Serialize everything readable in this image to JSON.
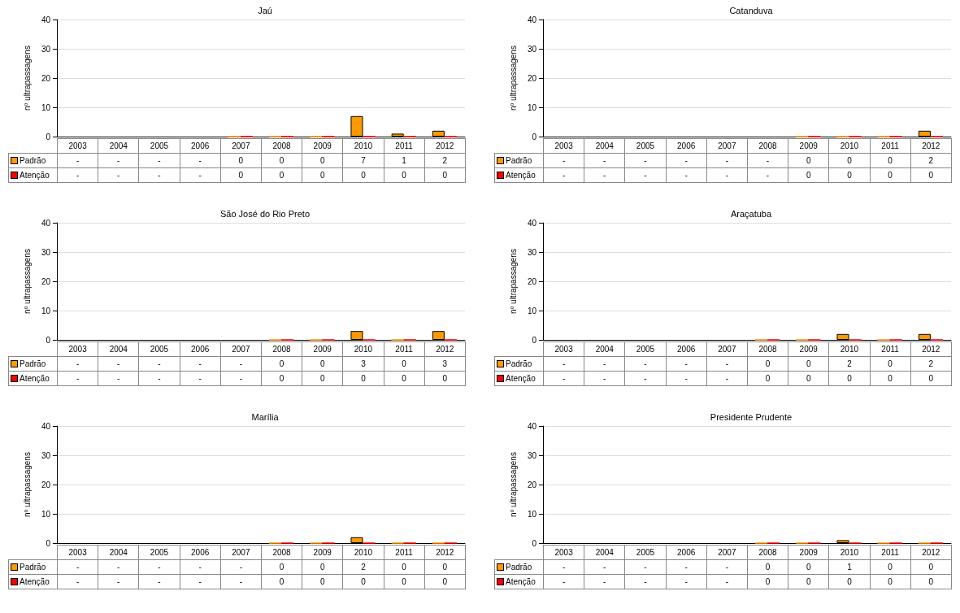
{
  "chart_data": [
    {
      "type": "bar",
      "title": "Jaú",
      "ylabel": "nº ultrapassagens",
      "categories": [
        "2003",
        "2004",
        "2005",
        "2006",
        "2007",
        "2008",
        "2009",
        "2010",
        "2011",
        "2012"
      ],
      "ylim": [
        0,
        40
      ],
      "yticks": [
        0,
        10,
        20,
        30,
        40
      ],
      "grid": "y",
      "legend": "bottom left",
      "data_labels": true,
      "series": [
        {
          "name": "Padrão",
          "color": "#ff9900",
          "values": [
            null,
            null,
            null,
            null,
            0,
            0,
            0,
            7,
            1,
            2
          ],
          "value_labels": [
            "-",
            "-",
            "-",
            "-",
            "0",
            "0",
            "0",
            "7",
            "1",
            "2"
          ]
        },
        {
          "name": "Atenção",
          "color": "#ff0000",
          "values": [
            null,
            null,
            null,
            null,
            0,
            0,
            0,
            0,
            0,
            0
          ],
          "value_labels": [
            "-",
            "-",
            "-",
            "-",
            "0",
            "0",
            "0",
            "0",
            "0",
            "0"
          ]
        }
      ]
    },
    {
      "type": "bar",
      "title": "Catanduva",
      "ylabel": "nº ultrapassagens",
      "categories": [
        "2003",
        "2004",
        "2005",
        "2006",
        "2007",
        "2008",
        "2009",
        "2010",
        "2011",
        "2012"
      ],
      "ylim": [
        0,
        40
      ],
      "yticks": [
        0,
        10,
        20,
        30,
        40
      ],
      "grid": "y",
      "legend": "bottom left",
      "data_labels": true,
      "series": [
        {
          "name": "Padrão",
          "color": "#ff9900",
          "values": [
            null,
            null,
            null,
            null,
            null,
            null,
            0,
            0,
            0,
            2
          ],
          "value_labels": [
            "-",
            "-",
            "-",
            "-",
            "-",
            "-",
            "0",
            "0",
            "0",
            "2"
          ]
        },
        {
          "name": "Atenção",
          "color": "#ff0000",
          "values": [
            null,
            null,
            null,
            null,
            null,
            null,
            0,
            0,
            0,
            0
          ],
          "value_labels": [
            "-",
            "-",
            "-",
            "-",
            "-",
            "-",
            "0",
            "0",
            "0",
            "0"
          ]
        }
      ]
    },
    {
      "type": "bar",
      "title": "São José do Rio Preto",
      "ylabel": "nº ultrapassagens",
      "categories": [
        "2003",
        "2004",
        "2005",
        "2006",
        "2007",
        "2008",
        "2009",
        "2010",
        "2011",
        "2012"
      ],
      "ylim": [
        0,
        40
      ],
      "yticks": [
        0,
        10,
        20,
        30,
        40
      ],
      "grid": "y",
      "legend": "bottom left",
      "data_labels": true,
      "series": [
        {
          "name": "Padrão",
          "color": "#ff9900",
          "values": [
            null,
            null,
            null,
            null,
            null,
            0,
            0,
            3,
            0,
            3
          ],
          "value_labels": [
            "-",
            "-",
            "-",
            "-",
            "-",
            "0",
            "0",
            "3",
            "0",
            "3"
          ]
        },
        {
          "name": "Atenção",
          "color": "#ff0000",
          "values": [
            null,
            null,
            null,
            null,
            null,
            0,
            0,
            0,
            0,
            0
          ],
          "value_labels": [
            "-",
            "-",
            "-",
            "-",
            "-",
            "0",
            "0",
            "0",
            "0",
            "0"
          ]
        }
      ]
    },
    {
      "type": "bar",
      "title": "Araçatuba",
      "ylabel": "nº ultrapassagens",
      "categories": [
        "2003",
        "2004",
        "2005",
        "2006",
        "2007",
        "2008",
        "2009",
        "2010",
        "2011",
        "2012"
      ],
      "ylim": [
        0,
        40
      ],
      "yticks": [
        0,
        10,
        20,
        30,
        40
      ],
      "grid": "y",
      "legend": "bottom left",
      "data_labels": true,
      "series": [
        {
          "name": "Padrão",
          "color": "#ff9900",
          "values": [
            null,
            null,
            null,
            null,
            null,
            0,
            0,
            2,
            0,
            2
          ],
          "value_labels": [
            "-",
            "-",
            "-",
            "-",
            "-",
            "0",
            "0",
            "2",
            "0",
            "2"
          ]
        },
        {
          "name": "Atenção",
          "color": "#ff0000",
          "values": [
            null,
            null,
            null,
            null,
            null,
            0,
            0,
            0,
            0,
            0
          ],
          "value_labels": [
            "-",
            "-",
            "-",
            "-",
            "-",
            "0",
            "0",
            "0",
            "0",
            "0"
          ]
        }
      ]
    },
    {
      "type": "bar",
      "title": "Marília",
      "ylabel": "nº ultrapassagens",
      "categories": [
        "2003",
        "2004",
        "2005",
        "2006",
        "2007",
        "2008",
        "2009",
        "2010",
        "2011",
        "2012"
      ],
      "ylim": [
        0,
        40
      ],
      "yticks": [
        0,
        10,
        20,
        30,
        40
      ],
      "grid": "y",
      "legend": "bottom left",
      "data_labels": true,
      "series": [
        {
          "name": "Padrão",
          "color": "#ff9900",
          "values": [
            null,
            null,
            null,
            null,
            null,
            0,
            0,
            2,
            0,
            0
          ],
          "value_labels": [
            "-",
            "-",
            "-",
            "-",
            "-",
            "0",
            "0",
            "2",
            "0",
            "0"
          ]
        },
        {
          "name": "Atenção",
          "color": "#ff0000",
          "values": [
            null,
            null,
            null,
            null,
            null,
            0,
            0,
            0,
            0,
            0
          ],
          "value_labels": [
            "-",
            "-",
            "-",
            "-",
            "-",
            "0",
            "0",
            "0",
            "0",
            "0"
          ]
        }
      ]
    },
    {
      "type": "bar",
      "title": "Presidente Prudente",
      "ylabel": "nº ultrapassagens",
      "categories": [
        "2003",
        "2004",
        "2005",
        "2006",
        "2007",
        "2008",
        "2009",
        "2010",
        "2011",
        "2012"
      ],
      "ylim": [
        0,
        40
      ],
      "yticks": [
        0,
        10,
        20,
        30,
        40
      ],
      "grid": "y",
      "legend": "bottom left",
      "data_labels": true,
      "series": [
        {
          "name": "Padrão",
          "color": "#ff9900",
          "values": [
            null,
            null,
            null,
            null,
            null,
            0,
            0,
            1,
            0,
            0
          ],
          "value_labels": [
            "-",
            "-",
            "-",
            "-",
            "-",
            "0",
            "0",
            "1",
            "0",
            "0"
          ]
        },
        {
          "name": "Atenção",
          "color": "#ff0000",
          "values": [
            null,
            null,
            null,
            null,
            null,
            0,
            0,
            0,
            0,
            0
          ],
          "value_labels": [
            "-",
            "-",
            "-",
            "-",
            "-",
            "0",
            "0",
            "0",
            "0",
            "0"
          ]
        }
      ]
    }
  ]
}
